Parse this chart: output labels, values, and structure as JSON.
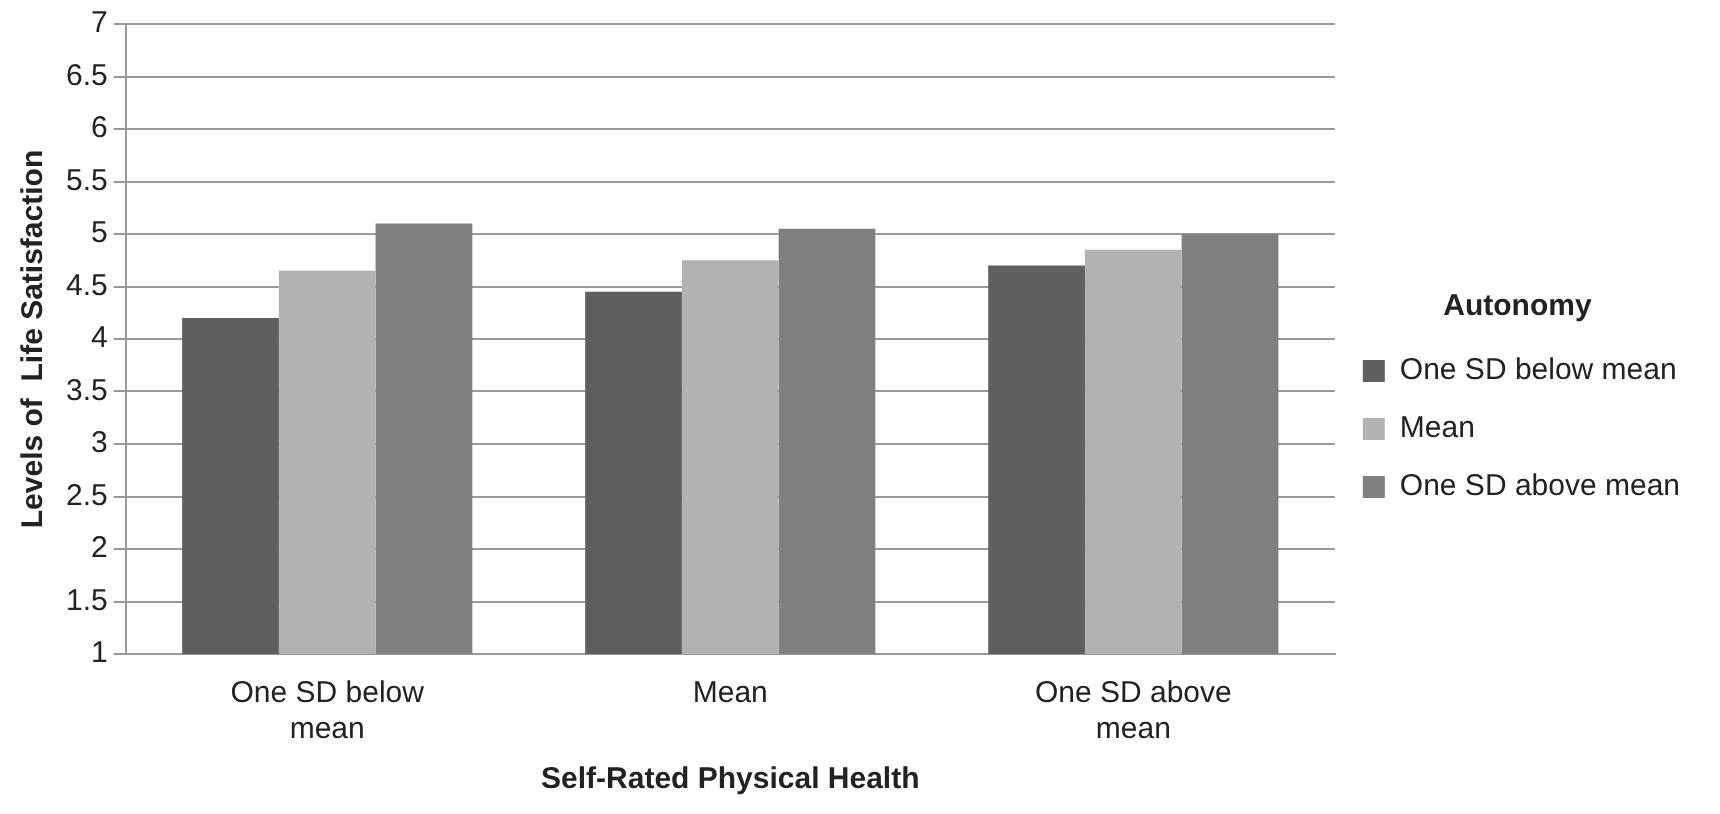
{
  "chart_data": {
    "type": "bar",
    "xlabel": "Self-Rated Physical Health",
    "ylabel": "Levels of  Life Satisfaction",
    "legend_title": "Autonomy",
    "categories": [
      "One SD below mean",
      "Mean",
      "One SD above mean"
    ],
    "series": [
      {
        "name": "One SD below mean",
        "color": "#5f5f5f",
        "values": [
          4.2,
          4.45,
          4.7
        ]
      },
      {
        "name": "Mean",
        "color": "#b2b2b2",
        "values": [
          4.65,
          4.75,
          4.85
        ]
      },
      {
        "name": "One SD above mean",
        "color": "#808080",
        "values": [
          5.1,
          5.05,
          5.0
        ]
      }
    ],
    "ylim": [
      1,
      7
    ],
    "yticks": [
      1,
      1.5,
      2,
      2.5,
      3,
      3.5,
      4,
      4.5,
      5,
      5.5,
      6,
      6.5,
      7
    ],
    "grid": "y",
    "legend": "right"
  }
}
